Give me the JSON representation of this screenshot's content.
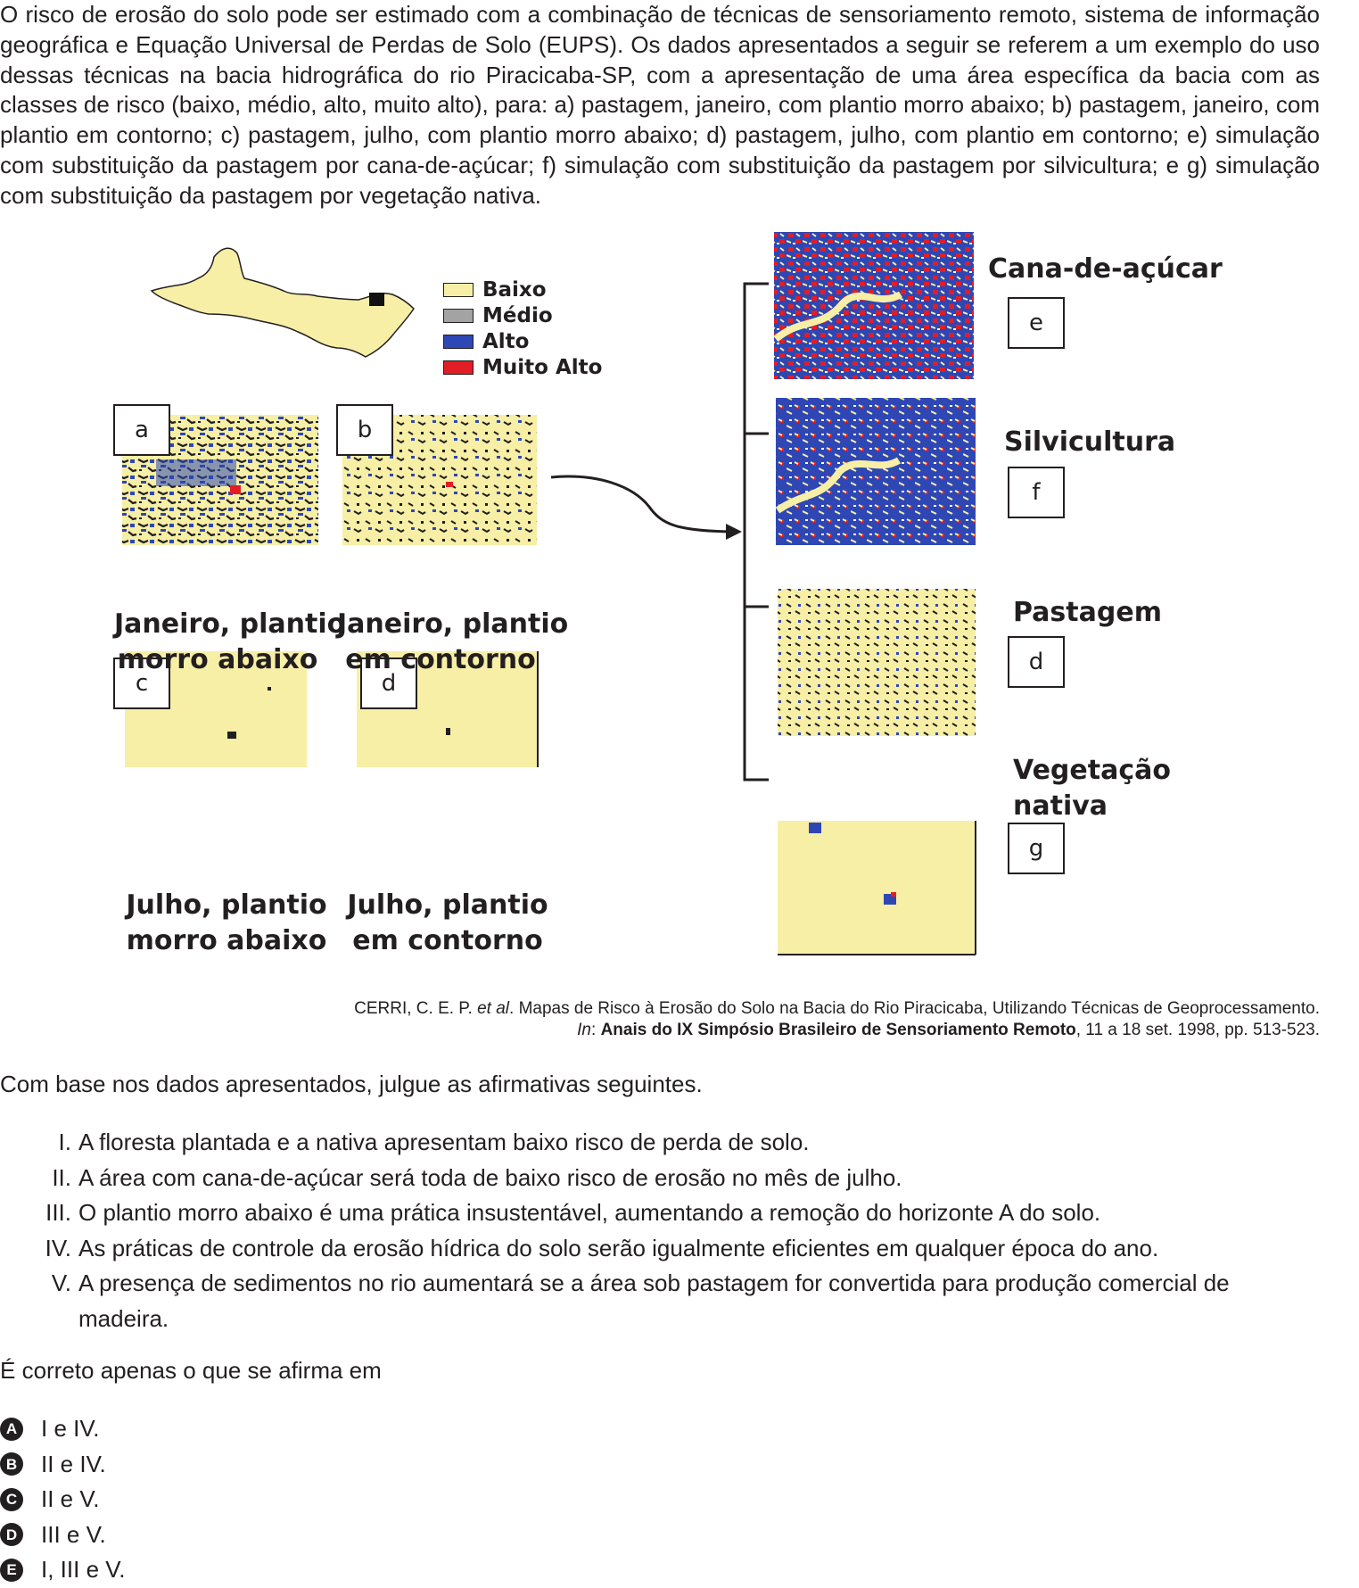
{
  "intro": "O risco de erosão do solo pode ser estimado com a combinação de técnicas de sensoriamento remoto, sistema de informação geográfica e Equação Universal de Perdas de Solo (EUPS). Os dados apresentados a seguir se referem a um exemplo do uso dessas técnicas na bacia hidrográfica do rio Piracicaba-SP, com a apresentação de uma área específica da bacia com as classes de risco (baixo, médio, alto, muito alto), para: a) pastagem, janeiro, com plantio morro abaixo; b) pastagem, janeiro, com plantio em contorno; c) pastagem, julho, com plantio morro abaixo; d) pastagem, julho, com plantio em contorno; e) simulação com substituição da pastagem por cana-de-açúcar; f) simulação com substituição da pastagem por silvicultura; e g) simulação com substituição da pastagem por vegetação nativa.",
  "legend": [
    {
      "label": "Baixo",
      "color": "#f7efa6"
    },
    {
      "label": "Médio",
      "color": "#a3a3a3"
    },
    {
      "label": "Alto",
      "color": "#2e47b5"
    },
    {
      "label": "Muito Alto",
      "color": "#e21d26"
    }
  ],
  "maps": {
    "a": {
      "letter": "a",
      "line1": "Janeiro, plantio",
      "line2": "morro abaixo"
    },
    "b": {
      "letter": "b",
      "line1": "Janeiro, plantio",
      "line2": "em contorno"
    },
    "c": {
      "letter": "c",
      "line1": "Julho, plantio",
      "line2": "morro abaixo"
    },
    "d": {
      "letter": "d",
      "line1": "Julho, plantio",
      "line2": "em contorno"
    }
  },
  "scenarios": {
    "e": {
      "letter": "e",
      "label": "Cana-de-açúcar"
    },
    "f": {
      "letter": "f",
      "label": "Silvicultura"
    },
    "d": {
      "letter": "d",
      "label": "Pastagem"
    },
    "g": {
      "letter": "g",
      "line1": "Vegetação",
      "line2": "nativa"
    }
  },
  "citation": {
    "line1_pre": "CERRI, C. E. P. ",
    "line1_italic": "et al",
    "line1_post": ". Mapas de Risco à Erosão do Solo na Bacia do Rio Piracicaba, Utilizando Técnicas de Geoprocessamento.",
    "line2_in": "In",
    "line2_colon": ": ",
    "line2_bold": "Anais do IX Simpósio Brasileiro de Sensoriamento Remoto",
    "line2_post": ", 11 a 18 set. 1998, pp. 513-523."
  },
  "stem": "Com base nos dados apresentados, julgue as afirmativas seguintes.",
  "statements": [
    {
      "num": "I.",
      "text": "A floresta plantada e a nativa apresentam baixo risco de perda de solo."
    },
    {
      "num": "II.",
      "text": "A área com cana-de-açúcar será toda de baixo risco de erosão no mês de julho."
    },
    {
      "num": "III.",
      "text": "O plantio morro abaixo é uma prática insustentável, aumentando a remoção do horizonte A do solo."
    },
    {
      "num": "IV.",
      "text": "As práticas de controle da erosão hídrica do solo serão igualmente eficientes em qualquer época do ano."
    },
    {
      "num": "V.",
      "text": "A presença de sedimentos no rio aumentará se a área sob pastagem for convertida para produção comercial de madeira."
    }
  ],
  "question": "É correto apenas o que se afirma em",
  "options": [
    {
      "letter": "A",
      "text": "I e IV."
    },
    {
      "letter": "B",
      "text": "II e IV."
    },
    {
      "letter": "C",
      "text": "II e V."
    },
    {
      "letter": "D",
      "text": "III e V."
    },
    {
      "letter": "E",
      "text": "I, III e V."
    }
  ]
}
